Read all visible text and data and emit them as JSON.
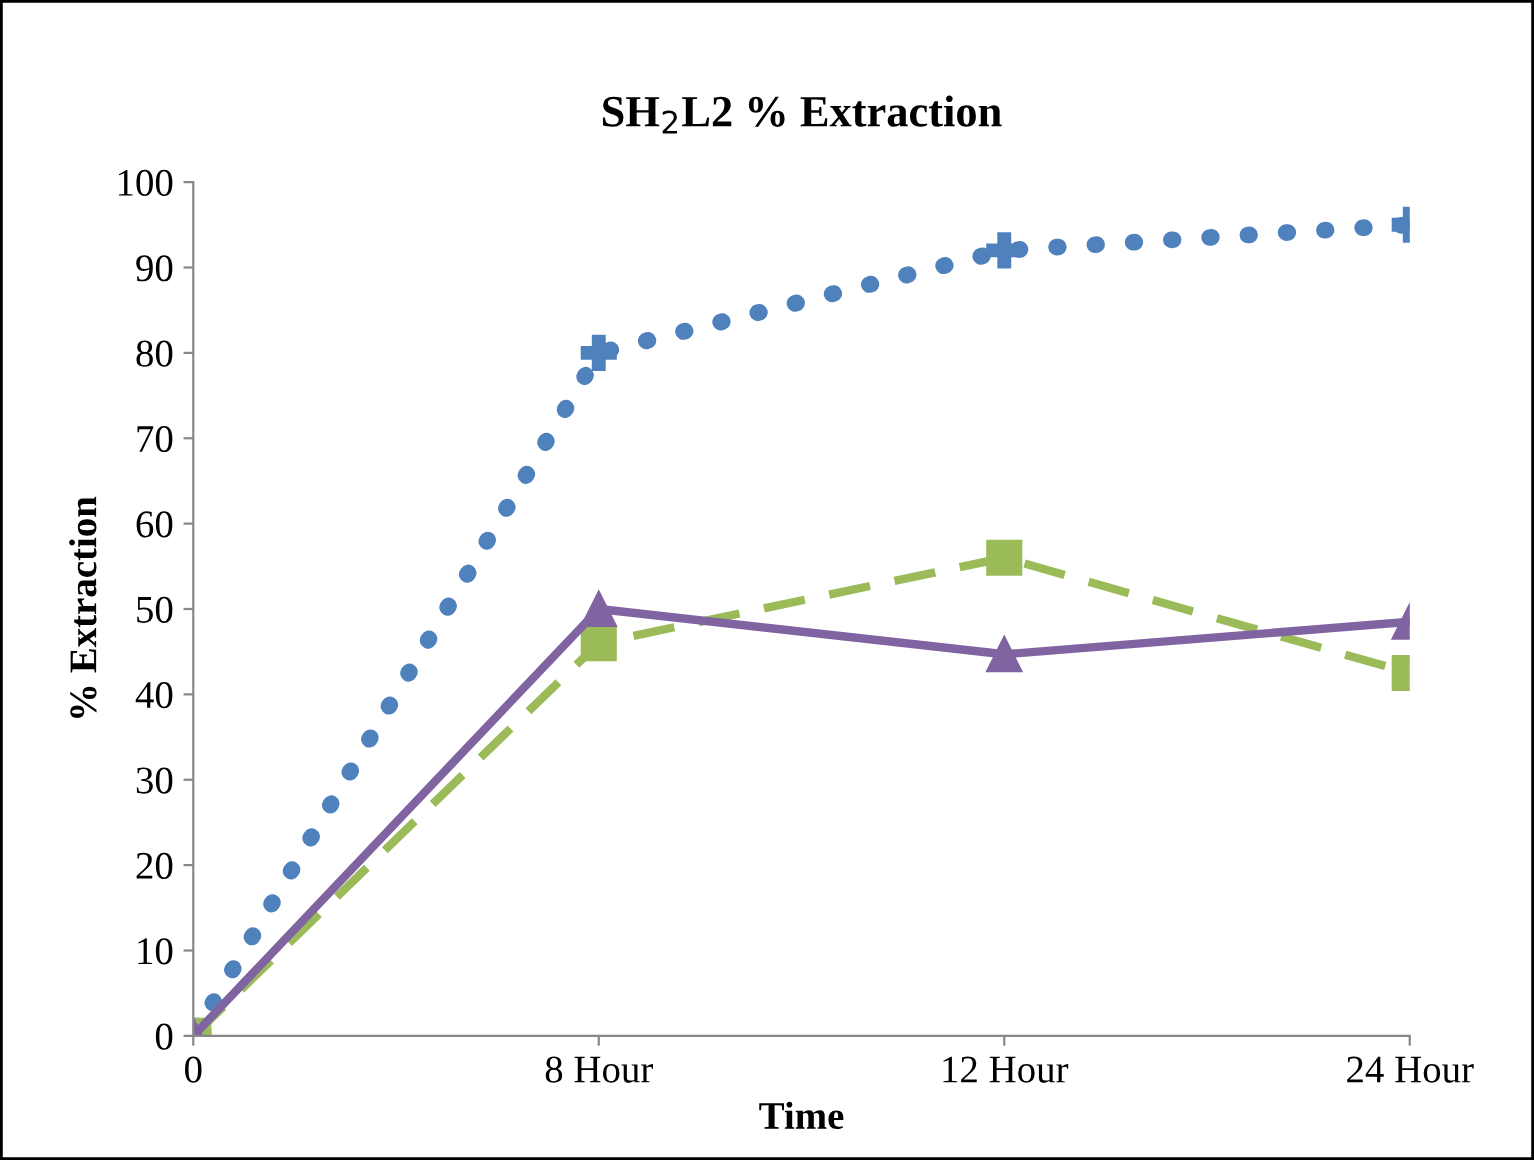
{
  "chart_data": {
    "type": "line",
    "title": "SH$_{2}$L2 % Extraction",
    "xlabel": "Time",
    "ylabel": "% Extraction",
    "categories": [
      "0",
      "8 Hour",
      "12 Hour",
      "24 Hour"
    ],
    "series": [
      {
        "color": "#4f81bd",
        "values": [
          0,
          80,
          92,
          95
        ],
        "marker": "cross",
        "line_style": "dotted"
      },
      {
        "color": "#9bbb59",
        "values": [
          0,
          46,
          56,
          42.5
        ],
        "marker": "square",
        "line_style": "dashed"
      },
      {
        "color": "#8064a2",
        "values": [
          0,
          50,
          44.7,
          48.5
        ],
        "marker": "triangle",
        "line_style": "solid"
      }
    ],
    "ylim": [
      0,
      100
    ],
    "yticks": [
      0,
      10,
      20,
      30,
      40,
      50,
      60,
      70,
      80,
      90,
      100
    ],
    "grid": false,
    "legend": false
  }
}
